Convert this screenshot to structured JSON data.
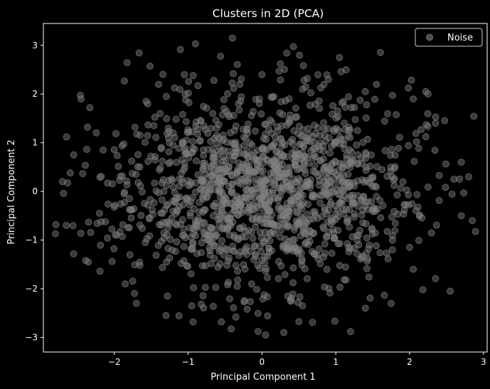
{
  "chart_data": {
    "type": "scatter",
    "title": "Clusters in 2D (PCA)",
    "xlabel": "Principal Component 1",
    "ylabel": "Principal Component 2",
    "xlim": [
      -2.96,
      3.05
    ],
    "ylim": [
      -3.3,
      3.45
    ],
    "xticks": [
      -2,
      -1,
      0,
      1,
      2,
      3
    ],
    "xtick_labels": [
      "−2",
      "−1",
      "0",
      "1",
      "2",
      "3"
    ],
    "yticks": [
      -3,
      -2,
      -1,
      0,
      1,
      2,
      3
    ],
    "ytick_labels": [
      "−3",
      "−2",
      "−1",
      "0",
      "1",
      "2",
      "3"
    ],
    "grid": false,
    "legend": {
      "position": "top-right",
      "entries": [
        "Noise"
      ]
    },
    "colors": {
      "background": "#000000",
      "axes": "#ffffff",
      "marker": "#808080"
    },
    "series": [
      {
        "name": "Noise",
        "points": [
          [
            -0.4,
            3.15
          ],
          [
            -0.9,
            3.03
          ],
          [
            1.05,
            2.75
          ],
          [
            0.25,
            2.62
          ],
          [
            -2.45,
            1.9
          ],
          [
            -2.33,
            1.72
          ],
          [
            -1.05,
            2.4
          ],
          [
            -0.65,
            2.28
          ],
          [
            -0.3,
            2.2
          ],
          [
            1.55,
            2.2
          ],
          [
            2.25,
            2.0
          ],
          [
            1.4,
            2.05
          ],
          [
            -2.55,
            0.75
          ],
          [
            -2.15,
            0.85
          ],
          [
            -2.2,
            -0.45
          ],
          [
            -2.35,
            -1.45
          ],
          [
            -2.65,
            -0.7
          ],
          [
            -2.7,
            0.2
          ],
          [
            -1.85,
            -1.9
          ],
          [
            -1.7,
            -2.3
          ],
          [
            -1.3,
            -2.55
          ],
          [
            -0.95,
            -2.35
          ],
          [
            -0.2,
            -2.42
          ],
          [
            0.05,
            -2.95
          ],
          [
            -0.55,
            -2.68
          ],
          [
            0.55,
            -2.35
          ],
          [
            1.2,
            -2.88
          ],
          [
            1.4,
            -2.4
          ],
          [
            1.75,
            -2.3
          ],
          [
            2.55,
            -2.05
          ],
          [
            2.7,
            0.6
          ],
          [
            2.85,
            -0.6
          ],
          [
            2.7,
            -0.5
          ],
          [
            2.8,
            0.3
          ],
          [
            2.6,
            0.25
          ],
          [
            2.35,
            1.4
          ],
          [
            2.05,
            1.9
          ],
          [
            2.0,
            -1.15
          ],
          [
            2.05,
            -1.6
          ],
          [
            0.0,
            2.4
          ],
          [
            -1.4,
            2.2
          ],
          [
            0.55,
            2.1
          ],
          [
            0.9,
            2.3
          ]
        ],
        "cloud": {
          "count": 1500,
          "sd_x": 1.0,
          "sd_y": 1.0,
          "seed": 20240611
        }
      }
    ]
  }
}
